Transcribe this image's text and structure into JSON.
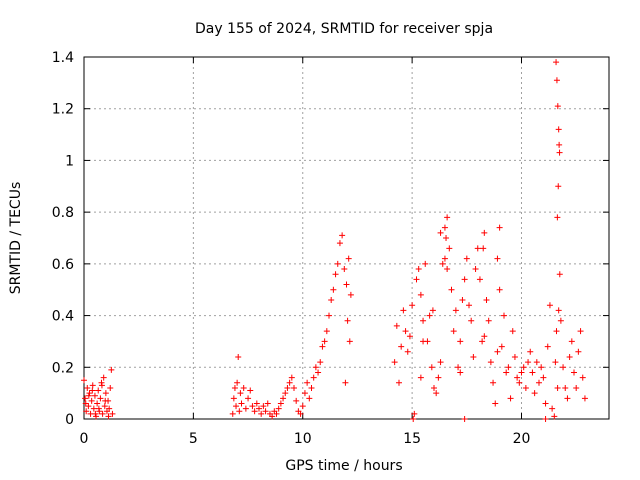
{
  "chart_data": {
    "type": "scatter",
    "title": "Day 155 of 2024, SRMTID for receiver spja",
    "xlabel": "GPS time / hours",
    "ylabel": "SRMTID / TECUs",
    "xlim": [
      0,
      24
    ],
    "ylim": [
      0,
      1.4
    ],
    "xticks": [
      0,
      5,
      10,
      15,
      20
    ],
    "xtick_labels": [
      "0",
      "5",
      "10",
      "15",
      "20"
    ],
    "yticks": [
      0,
      0.2,
      0.4,
      0.6,
      0.8,
      1.0,
      1.2,
      1.4
    ],
    "ytick_labels": [
      "0",
      "0.2",
      "0.4",
      "0.6",
      "0.8",
      "1",
      "1.2",
      "1.4"
    ],
    "grid": true,
    "marker": "+",
    "color": "#ff0000",
    "series": [
      {
        "name": "SRMTID",
        "x": [
          0.0,
          0.05,
          0.1,
          0.15,
          0.2,
          0.25,
          0.3,
          0.35,
          0.4,
          0.45,
          0.5,
          0.55,
          0.6,
          0.65,
          0.7,
          0.75,
          0.8,
          0.85,
          0.9,
          0.95,
          1.0,
          1.05,
          1.1,
          1.15,
          1.2,
          1.25,
          1.3,
          0.08,
          0.22,
          0.38,
          0.52,
          0.68,
          0.82,
          0.97,
          1.12,
          6.8,
          6.85,
          6.9,
          6.95,
          7.0,
          7.05,
          7.1,
          7.15,
          7.2,
          7.3,
          7.4,
          7.5,
          7.6,
          7.7,
          7.8,
          7.9,
          8.0,
          8.1,
          8.2,
          8.3,
          8.4,
          8.5,
          8.6,
          8.7,
          8.8,
          8.9,
          9.0,
          9.1,
          9.2,
          9.3,
          9.4,
          9.5,
          9.6,
          9.7,
          9.8,
          9.9,
          10.0,
          10.1,
          10.2,
          10.3,
          10.4,
          10.5,
          10.6,
          10.7,
          10.8,
          10.9,
          11.0,
          11.1,
          11.2,
          11.3,
          11.4,
          11.5,
          11.6,
          11.7,
          11.8,
          11.9,
          12.0,
          12.1,
          12.2,
          11.95,
          12.05,
          12.15,
          14.2,
          14.3,
          14.4,
          14.5,
          14.6,
          14.7,
          14.8,
          14.9,
          15.0,
          15.1,
          15.2,
          15.3,
          15.4,
          15.5,
          15.6,
          15.7,
          15.8,
          15.9,
          16.0,
          16.1,
          16.2,
          16.3,
          16.4,
          16.5,
          16.6,
          16.7,
          16.8,
          16.9,
          17.0,
          17.1,
          17.2,
          17.3,
          17.4,
          17.5,
          17.6,
          17.7,
          17.8,
          17.9,
          18.0,
          18.1,
          18.2,
          18.3,
          18.4,
          18.5,
          18.6,
          18.7,
          18.8,
          18.9,
          19.0,
          19.1,
          19.2,
          19.3,
          19.4,
          19.5,
          19.6,
          19.7,
          19.8,
          19.9,
          20.0,
          20.1,
          20.2,
          20.3,
          20.4,
          20.5,
          20.6,
          20.7,
          20.8,
          20.9,
          21.0,
          21.1,
          21.2,
          21.3,
          21.4,
          21.5,
          21.55,
          21.6,
          21.65,
          21.7,
          21.75,
          21.8,
          21.9,
          22.0,
          22.1,
          22.2,
          22.3,
          22.4,
          22.5,
          22.6,
          22.7,
          22.8,
          22.9,
          16.3,
          16.5,
          16.55,
          16.6,
          17.2,
          18.25,
          18.3,
          18.9,
          19.0,
          15.4,
          15.5,
          15.95,
          21.58,
          21.62,
          21.66,
          21.7,
          21.72,
          21.74,
          21.68,
          21.64,
          15.05,
          17.4,
          21.1
        ],
        "y": [
          0.15,
          0.08,
          0.03,
          0.12,
          0.05,
          0.1,
          0.02,
          0.07,
          0.13,
          0.04,
          0.09,
          0.01,
          0.06,
          0.11,
          0.03,
          0.08,
          0.14,
          0.02,
          0.16,
          0.05,
          0.1,
          0.03,
          0.07,
          0.04,
          0.12,
          0.19,
          0.02,
          0.06,
          0.09,
          0.11,
          0.02,
          0.04,
          0.13,
          0.07,
          0.01,
          0.02,
          0.08,
          0.12,
          0.05,
          0.14,
          0.24,
          0.03,
          0.1,
          0.06,
          0.12,
          0.04,
          0.08,
          0.11,
          0.05,
          0.03,
          0.06,
          0.04,
          0.02,
          0.05,
          0.03,
          0.06,
          0.02,
          0.01,
          0.03,
          0.02,
          0.04,
          0.06,
          0.08,
          0.1,
          0.12,
          0.14,
          0.16,
          0.12,
          0.07,
          0.03,
          0.02,
          0.05,
          0.1,
          0.14,
          0.08,
          0.12,
          0.16,
          0.2,
          0.18,
          0.22,
          0.28,
          0.3,
          0.34,
          0.4,
          0.46,
          0.5,
          0.56,
          0.6,
          0.68,
          0.71,
          0.58,
          0.52,
          0.62,
          0.48,
          0.14,
          0.38,
          0.3,
          0.22,
          0.36,
          0.14,
          0.28,
          0.42,
          0.34,
          0.26,
          0.32,
          0.44,
          0.02,
          0.54,
          0.58,
          0.48,
          0.38,
          0.6,
          0.3,
          0.4,
          0.2,
          0.12,
          0.1,
          0.16,
          0.22,
          0.6,
          0.74,
          0.78,
          0.66,
          0.5,
          0.34,
          0.42,
          0.2,
          0.3,
          0.46,
          0.54,
          0.62,
          0.44,
          0.38,
          0.24,
          0.58,
          0.66,
          0.54,
          0.3,
          0.32,
          0.46,
          0.38,
          0.22,
          0.14,
          0.06,
          0.26,
          0.5,
          0.28,
          0.4,
          0.18,
          0.2,
          0.08,
          0.34,
          0.24,
          0.16,
          0.14,
          0.18,
          0.2,
          0.12,
          0.22,
          0.26,
          0.18,
          0.1,
          0.22,
          0.14,
          0.2,
          0.16,
          0.06,
          0.28,
          0.44,
          0.04,
          0.01,
          0.22,
          0.34,
          0.12,
          0.42,
          0.56,
          0.38,
          0.2,
          0.12,
          0.08,
          0.24,
          0.3,
          0.18,
          0.12,
          0.26,
          0.34,
          0.16,
          0.08,
          0.72,
          0.62,
          0.7,
          0.58,
          0.18,
          0.66,
          0.72,
          0.62,
          0.74,
          0.16,
          0.3,
          0.42,
          1.38,
          1.31,
          1.21,
          1.12,
          1.06,
          1.03,
          0.9,
          0.78,
          0.0,
          0.0,
          0.0
        ]
      }
    ]
  }
}
